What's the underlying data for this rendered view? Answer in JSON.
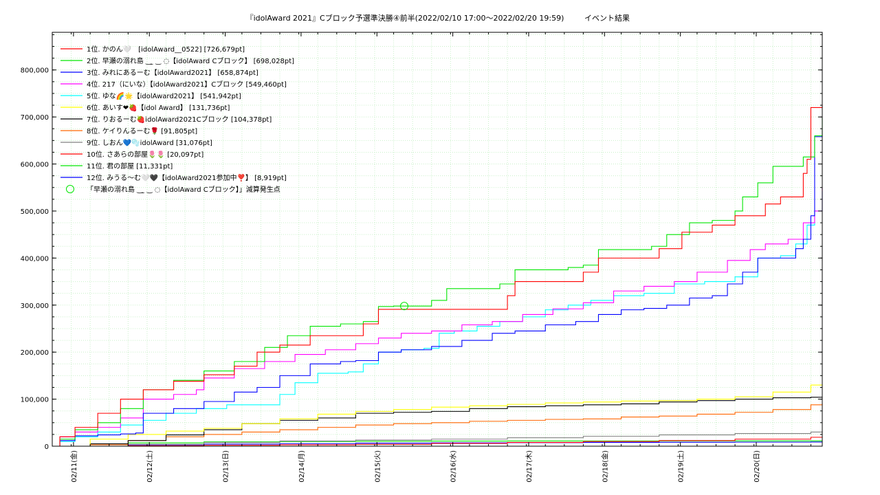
{
  "chart_data": {
    "type": "line",
    "title": "『idolAward 2021』Cブロック予選準決勝④前半(2022/02/10 17:00～2022/02/20 19:59)",
    "subtitle": "イベント結果",
    "xlabel": "",
    "ylabel": "",
    "x_range": [
      0,
      10.15
    ],
    "ylim": [
      0,
      880000
    ],
    "grid": true,
    "legend_position": "top-left",
    "yticks": [
      0,
      100000,
      200000,
      300000,
      400000,
      500000,
      600000,
      700000,
      800000
    ],
    "ytick_labels": [
      "0",
      "100,000",
      "200,000",
      "300,000",
      "400,000",
      "500,000",
      "600,000",
      "700,000",
      "800,000"
    ],
    "xticks": [
      0.28,
      1.28,
      2.28,
      3.28,
      4.28,
      5.28,
      6.28,
      7.28,
      8.28,
      9.28
    ],
    "xtick_labels": [
      "02/11(金)",
      "02/12(土)",
      "02/13(日)",
      "02/14(月)",
      "02/15(火)",
      "02/16(水)",
      "02/17(木)",
      "02/18(金)",
      "02/19(土)",
      "02/20(日)"
    ],
    "series": [
      {
        "name": "1位. かのん🤍　[idolAward__0522] [726,679pt]",
        "color": "#ff0000",
        "x": [
          0,
          0.1,
          0.3,
          0.6,
          0.9,
          1.2,
          1.6,
          2.0,
          2.4,
          2.7,
          3.0,
          3.4,
          3.8,
          4.1,
          4.3,
          4.5,
          4.8,
          5.2,
          5.6,
          5.9,
          6.0,
          6.1,
          6.4,
          6.9,
          7.0,
          7.2,
          7.7,
          8.0,
          8.3,
          8.7,
          9.0,
          9.4,
          9.5,
          9.6,
          9.9,
          9.95,
          10.0,
          10.15
        ],
        "y": [
          0,
          20000,
          40000,
          70000,
          100000,
          120000,
          138000,
          152000,
          170000,
          200000,
          215000,
          235000,
          235000,
          260000,
          291000,
          291000,
          291000,
          291000,
          291000,
          291000,
          320000,
          350000,
          350000,
          350000,
          370000,
          400000,
          400000,
          420000,
          455000,
          470000,
          490000,
          515000,
          515000,
          530000,
          580000,
          610000,
          720000,
          726679
        ]
      },
      {
        "name": "2位. 早瀬の溺れ島 ‿ ̫ ‿ ◌【idolAward Cブロック】 [698,028pt]",
        "color": "#00e600",
        "x": [
          0,
          0.1,
          0.3,
          0.6,
          0.9,
          1.2,
          1.6,
          2.0,
          2.4,
          2.8,
          3.1,
          3.4,
          3.8,
          4.1,
          4.3,
          4.5,
          4.8,
          5.0,
          5.2,
          5.6,
          5.9,
          6.1,
          6.4,
          6.8,
          7.0,
          7.2,
          7.6,
          7.9,
          8.1,
          8.4,
          8.7,
          9.0,
          9.1,
          9.3,
          9.5,
          9.7,
          9.9,
          10.05,
          10.15
        ],
        "y": [
          0,
          15000,
          35000,
          50000,
          80000,
          120000,
          140000,
          160000,
          180000,
          210000,
          235000,
          255000,
          260000,
          265000,
          297000,
          298000,
          298000,
          310000,
          335000,
          335000,
          345000,
          375000,
          375000,
          380000,
          385000,
          418000,
          418000,
          425000,
          450000,
          475000,
          480000,
          500000,
          530000,
          560000,
          595000,
          595000,
          615000,
          660000,
          698028
        ]
      },
      {
        "name": "3位. みれにあるーむ【idolAward2021】 [658,874pt]",
        "color": "#0000ff",
        "x": [
          0,
          0.1,
          0.3,
          0.6,
          0.9,
          1.1,
          1.2,
          1.6,
          2.0,
          2.4,
          2.7,
          3.0,
          3.4,
          3.8,
          4.0,
          4.3,
          4.6,
          5.0,
          5.4,
          5.8,
          6.1,
          6.5,
          6.9,
          7.2,
          7.5,
          7.8,
          8.1,
          8.4,
          8.7,
          8.9,
          9.1,
          9.3,
          9.6,
          9.8,
          9.9,
          10.0,
          10.05,
          10.15
        ],
        "y": [
          0,
          12000,
          22000,
          24000,
          26000,
          28000,
          70000,
          80000,
          95000,
          115000,
          125000,
          150000,
          175000,
          180000,
          182000,
          200000,
          205000,
          212000,
          225000,
          240000,
          245000,
          258000,
          265000,
          280000,
          290000,
          293000,
          300000,
          315000,
          320000,
          345000,
          370000,
          400000,
          400000,
          420000,
          440000,
          490000,
          658000,
          658874
        ]
      },
      {
        "name": "4位. 217（にいな）【idolAward2021】Cブロック [549,460pt]",
        "color": "#ff00ff",
        "x": [
          0,
          0.1,
          0.3,
          0.6,
          0.9,
          1.2,
          1.6,
          1.9,
          2.0,
          2.4,
          2.8,
          3.2,
          3.6,
          4.0,
          4.3,
          4.6,
          5.0,
          5.4,
          5.8,
          6.2,
          6.6,
          7.0,
          7.4,
          7.8,
          8.2,
          8.5,
          8.9,
          9.2,
          9.4,
          9.7,
          9.9,
          10.05,
          10.15
        ],
        "y": [
          0,
          20000,
          30000,
          40000,
          60000,
          100000,
          110000,
          120000,
          145000,
          165000,
          180000,
          195000,
          205000,
          218000,
          230000,
          240000,
          245000,
          258000,
          265000,
          280000,
          292000,
          305000,
          330000,
          340000,
          350000,
          370000,
          395000,
          418000,
          430000,
          440000,
          475000,
          500000,
          549460
        ]
      },
      {
        "name": "5位. ゆな🌈🌟【idolAward2021】 [541,942pt]",
        "color": "#00ffff",
        "x": [
          0,
          0.1,
          0.3,
          0.6,
          0.9,
          1.2,
          1.5,
          1.9,
          2.3,
          2.8,
          3.0,
          3.2,
          3.5,
          3.9,
          4.1,
          4.3,
          4.6,
          4.9,
          5.1,
          5.3,
          5.6,
          5.9,
          6.2,
          6.5,
          6.8,
          7.1,
          7.4,
          7.8,
          8.2,
          8.6,
          9.0,
          9.3,
          9.6,
          9.8,
          9.95,
          10.05,
          10.15
        ],
        "y": [
          0,
          10000,
          20000,
          30000,
          45000,
          55000,
          70000,
          80000,
          88000,
          88000,
          110000,
          135000,
          155000,
          158000,
          175000,
          200000,
          205000,
          208000,
          240000,
          245000,
          255000,
          265000,
          275000,
          290000,
          300000,
          310000,
          320000,
          325000,
          345000,
          350000,
          360000,
          400000,
          405000,
          430000,
          470000,
          500000,
          541942
        ]
      },
      {
        "name": "6位. あいす❤🍓【idol Award】 [131,736pt]",
        "color": "#ffff00",
        "x": [
          0,
          0.5,
          1.0,
          1.5,
          2.0,
          2.5,
          3.0,
          3.5,
          4.0,
          4.5,
          5.0,
          5.5,
          6.0,
          6.5,
          7.0,
          7.5,
          8.0,
          8.5,
          9.0,
          9.5,
          10.0,
          10.15
        ],
        "y": [
          0,
          15000,
          25000,
          32000,
          38000,
          48000,
          58000,
          68000,
          74000,
          78000,
          83000,
          86000,
          89000,
          92000,
          94000,
          96000,
          97000,
          100000,
          105000,
          115000,
          130000,
          131736
        ]
      },
      {
        "name": "7位. りおるーむ🍓idolAward2021Cブロック [104,378pt]",
        "color": "#000000",
        "x": [
          0,
          0.5,
          1.0,
          1.5,
          2.0,
          2.5,
          3.0,
          3.5,
          4.0,
          4.5,
          5.0,
          5.5,
          6.0,
          6.5,
          7.0,
          7.5,
          8.0,
          8.5,
          9.0,
          9.5,
          10.0,
          10.15
        ],
        "y": [
          0,
          5000,
          12000,
          24000,
          35000,
          48000,
          55000,
          60000,
          70000,
          72000,
          74000,
          80000,
          84000,
          86000,
          88000,
          90000,
          94000,
          97000,
          100000,
          103000,
          104000,
          104378
        ]
      },
      {
        "name": "8位. ケイりんるーむ🌹 [91,805pt]",
        "color": "#ff6600",
        "x": [
          0,
          0.5,
          1.0,
          1.5,
          2.0,
          2.5,
          3.0,
          3.5,
          4.0,
          4.5,
          5.0,
          5.5,
          6.0,
          6.5,
          7.0,
          7.5,
          8.0,
          8.5,
          9.0,
          9.5,
          10.0,
          10.15
        ],
        "y": [
          0,
          3000,
          12000,
          20000,
          25000,
          30000,
          35000,
          40000,
          45000,
          48000,
          50000,
          53000,
          55000,
          57000,
          58000,
          62000,
          64000,
          68000,
          72000,
          78000,
          88000,
          91805
        ]
      },
      {
        "name": "9位. しおん💙🫧idolAward [31,076pt]",
        "color": "#808080",
        "x": [
          0,
          1.0,
          2.0,
          3.0,
          4.0,
          5.0,
          6.0,
          7.0,
          8.0,
          9.0,
          10.0,
          10.15
        ],
        "y": [
          0,
          4000,
          8000,
          11000,
          13000,
          15000,
          18000,
          21000,
          24000,
          27000,
          30000,
          31076
        ]
      },
      {
        "name": "10位. さあらの部屋🌷🌷 [20,097pt]",
        "color": "#ff0000",
        "x": [
          0,
          1.0,
          2.0,
          3.0,
          4.0,
          5.0,
          6.0,
          7.0,
          8.0,
          9.0,
          10.0,
          10.15
        ],
        "y": [
          0,
          1000,
          2000,
          3000,
          4000,
          6000,
          8000,
          10000,
          12000,
          15000,
          19000,
          20097
        ]
      },
      {
        "name": "11位. 君の部屋 [11,331pt]",
        "color": "#00e600",
        "x": [
          0,
          1.0,
          2.0,
          3.0,
          4.0,
          5.0,
          6.0,
          7.0,
          8.0,
          9.0,
          10.0,
          10.15
        ],
        "y": [
          0,
          7000,
          9000,
          10000,
          10500,
          10800,
          11000,
          11100,
          11200,
          11250,
          11300,
          11331
        ]
      },
      {
        "name": "12位. みうる〜む🤍🖤【idolAward2021参加中❣️】 [8,919pt]",
        "color": "#0000ff",
        "x": [
          0,
          1.0,
          2.0,
          3.0,
          4.0,
          5.0,
          6.0,
          7.0,
          8.0,
          9.0,
          10.0,
          10.15
        ],
        "y": [
          0,
          3000,
          4500,
          5500,
          6500,
          7000,
          7500,
          8000,
          8300,
          8600,
          8900,
          8919
        ]
      }
    ],
    "annotations": [
      {
        "name": "「早瀬の溺れ島 ‿ ̫ ‿ ◌【idolAward Cブロック】」減算発生点",
        "x": 4.64,
        "y": 298000,
        "color": "#00e600",
        "marker": "circle"
      }
    ]
  }
}
